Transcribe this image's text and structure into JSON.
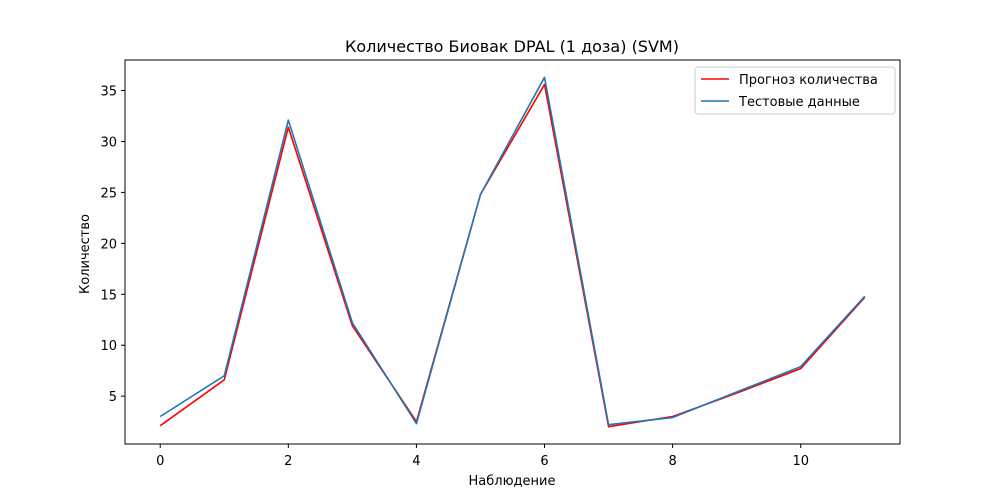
{
  "chart_data": {
    "type": "line",
    "title": "Количество Биовак DPAL (1 доза) (SVM)",
    "xlabel": "Наблюдение",
    "ylabel": "Количество",
    "x": [
      0,
      1,
      2,
      3,
      4,
      5,
      6,
      7,
      8,
      9,
      10,
      11
    ],
    "xlim": [
      -0.55,
      11.55
    ],
    "ylim": [
      0.3,
      38.0
    ],
    "xticks": [
      0,
      2,
      4,
      6,
      8,
      10
    ],
    "yticks": [
      5,
      10,
      15,
      20,
      25,
      30,
      35
    ],
    "grid": false,
    "legend_position": "top-right",
    "series": [
      {
        "name": "Прогноз количества",
        "color": "#ff0000",
        "values": [
          2.1,
          6.6,
          31.4,
          11.9,
          2.5,
          24.8,
          35.6,
          2.0,
          3.0,
          5.3,
          7.7,
          14.7
        ]
      },
      {
        "name": "Тестовые данные",
        "color": "#1f77b4",
        "values": [
          3.0,
          7.0,
          32.1,
          12.2,
          2.3,
          24.8,
          36.3,
          2.2,
          2.9,
          5.4,
          7.9,
          14.8
        ]
      }
    ]
  }
}
